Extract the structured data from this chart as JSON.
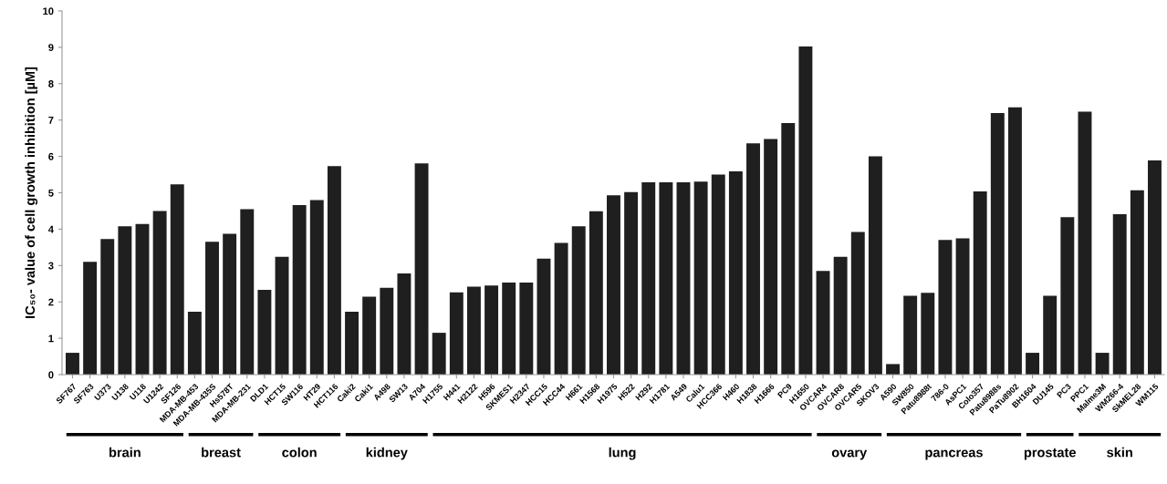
{
  "chart_data": {
    "type": "bar",
    "ylabel": "IC₅₀- value of cell growth inhibition [µM]",
    "categories": [
      "SF767",
      "SF763",
      "U373",
      "U138",
      "U118",
      "U1242",
      "SF126",
      "MDA-MB-453",
      "MDA-MB-435S",
      "Hs578T",
      "MDA-MB-231",
      "DLD1",
      "HCT15",
      "SW116",
      "HT29",
      "HCT116",
      "Caki2",
      "Caki1",
      "A498",
      "SW13",
      "A704",
      "H1755",
      "H441",
      "H2122",
      "H596",
      "SKMES1",
      "H2347",
      "HCC15",
      "HCC44",
      "H661",
      "H1568",
      "H1975",
      "H522",
      "H292",
      "H1781",
      "A549",
      "Calu1",
      "HCC366",
      "H460",
      "H1838",
      "H1666",
      "PC9",
      "H1650",
      "OVCAR4",
      "OVCAR8",
      "OVCAR5",
      "SKOV3",
      "A590",
      "SW850",
      "Patu8988t",
      "786-0",
      "AsPC1",
      "Colo357",
      "Patu8988s",
      "PaTu8902",
      "BH1604",
      "DU145",
      "PC3",
      "PPC1",
      "Malme3M",
      "WM266-4",
      "SkMEL28",
      "WM115"
    ],
    "values": [
      0.6,
      3.1,
      3.73,
      4.08,
      4.14,
      4.5,
      5.23,
      1.73,
      3.65,
      3.87,
      4.55,
      2.33,
      3.24,
      4.66,
      4.8,
      5.73,
      1.73,
      2.14,
      2.39,
      2.78,
      5.81,
      1.15,
      2.26,
      2.42,
      2.45,
      2.53,
      2.53,
      3.19,
      3.62,
      4.08,
      4.49,
      4.93,
      5.02,
      5.29,
      5.29,
      5.29,
      5.31,
      5.5,
      5.59,
      6.36,
      6.48,
      6.92,
      9.02,
      2.85,
      3.24,
      3.92,
      6.0,
      0.29,
      2.17,
      2.25,
      3.7,
      3.75,
      5.04,
      7.19,
      7.35,
      0.6,
      2.17,
      4.33,
      7.23,
      0.6,
      4.41,
      5.07,
      5.89
    ],
    "color": "#1f1f1f",
    "ylim": [
      0,
      10
    ],
    "yticks": [
      0,
      1,
      2,
      3,
      4,
      5,
      6,
      7,
      8,
      9,
      10
    ],
    "grid": false,
    "legend": false,
    "annotations": [
      "brain",
      "breast",
      "colon",
      "kidney",
      "lung",
      "ovary",
      "pancreas",
      "prostate",
      "skin"
    ]
  }
}
